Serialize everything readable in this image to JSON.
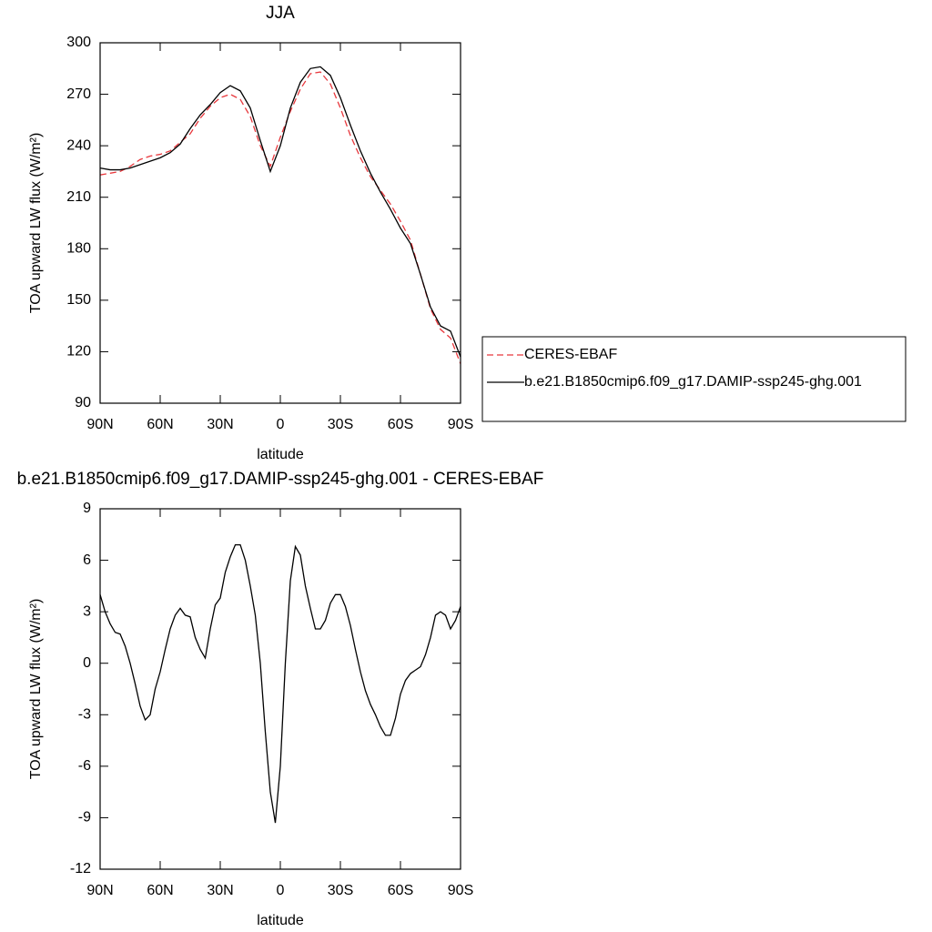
{
  "chart_data": [
    {
      "type": "line",
      "title": "JJA",
      "xlabel": "latitude",
      "ylabel": "TOA upward LW flux (W/m²)",
      "x": [
        90,
        85,
        80,
        75,
        70,
        65,
        60,
        55,
        50,
        45,
        40,
        35,
        30,
        25,
        20,
        15,
        10,
        5,
        0,
        -5,
        -10,
        -15,
        -20,
        -25,
        -30,
        -35,
        -40,
        -45,
        -50,
        -55,
        -60,
        -65,
        -70,
        -75,
        -80,
        -85,
        -90
      ],
      "series": [
        {
          "name": "CERES-EBAF",
          "color": "#e8383d",
          "style": "dashed",
          "values": [
            223,
            224,
            225,
            228,
            232,
            234,
            235,
            237,
            242,
            247,
            256,
            263,
            268,
            270,
            267,
            257,
            240,
            228,
            245,
            260,
            273,
            282,
            283,
            276,
            262,
            246,
            233,
            222,
            214,
            206,
            196,
            185,
            165,
            145,
            133,
            128,
            113
          ]
        },
        {
          "name": "b.e21.B1850cmip6.f09_g17.DAMIP-ssp245-ghg.001",
          "color": "#000000",
          "style": "solid",
          "values": [
            227,
            226,
            226,
            227,
            229,
            231,
            233,
            236,
            241,
            250,
            258,
            264,
            271,
            275,
            272,
            262,
            243,
            225,
            240,
            262,
            277,
            285,
            286,
            281,
            268,
            252,
            237,
            224,
            213,
            203,
            192,
            183,
            165,
            146,
            135,
            132,
            117
          ]
        }
      ],
      "xlim": [
        90,
        -90
      ],
      "xticks": [
        {
          "value": 90,
          "label": "90N"
        },
        {
          "value": 60,
          "label": "60N"
        },
        {
          "value": 30,
          "label": "30N"
        },
        0,
        {
          "value": -30,
          "label": "30S"
        },
        {
          "value": -60,
          "label": "60S"
        },
        {
          "value": -90,
          "label": "90S"
        }
      ],
      "ylim": [
        90,
        300
      ],
      "yticks": [
        90,
        120,
        150,
        180,
        210,
        240,
        270,
        300
      ],
      "legend": "right"
    },
    {
      "type": "line",
      "title": "b.e21.B1850cmip6.f09_g17.DAMIP-ssp245-ghg.001 - CERES-EBAF",
      "xlabel": "latitude",
      "ylabel": "TOA upward LW flux (W/m²)",
      "x": [
        90,
        87.5,
        85,
        82.5,
        80,
        77.5,
        75,
        72.5,
        70,
        67.5,
        65,
        62.5,
        60,
        57.5,
        55,
        52.5,
        50,
        47.5,
        45,
        42.5,
        40,
        37.5,
        35,
        32.5,
        30,
        27.5,
        25,
        22.5,
        20,
        17.5,
        15,
        12.5,
        10,
        7.5,
        5,
        2.5,
        0,
        -2.5,
        -5,
        -7.5,
        -10,
        -12.5,
        -15,
        -17.5,
        -20,
        -22.5,
        -25,
        -27.5,
        -30,
        -32.5,
        -35,
        -37.5,
        -40,
        -42.5,
        -45,
        -47.5,
        -50,
        -52.5,
        -55,
        -57.5,
        -60,
        -62.5,
        -65,
        -67.5,
        -70,
        -72.5,
        -75,
        -77.5,
        -80,
        -82.5,
        -85,
        -87.5,
        -90
      ],
      "series": [
        {
          "color": "#000000",
          "style": "solid",
          "values": [
            4.0,
            3.0,
            2.3,
            1.8,
            1.7,
            1.0,
            0.0,
            -1.2,
            -2.5,
            -3.3,
            -3.0,
            -1.5,
            -0.5,
            0.8,
            2.0,
            2.8,
            3.2,
            2.8,
            2.7,
            1.5,
            0.8,
            0.3,
            2.0,
            3.4,
            3.8,
            5.3,
            6.2,
            6.9,
            6.9,
            6.0,
            4.5,
            2.8,
            0.0,
            -4.0,
            -7.5,
            -9.3,
            -6.0,
            0.0,
            4.8,
            6.8,
            6.3,
            4.5,
            3.2,
            2.0,
            2.0,
            2.5,
            3.5,
            4.0,
            4.0,
            3.3,
            2.2,
            0.8,
            -0.5,
            -1.6,
            -2.4,
            -3.0,
            -3.7,
            -4.2,
            -4.2,
            -3.2,
            -1.8,
            -1.0,
            -0.6,
            -0.4,
            -0.2,
            0.5,
            1.5,
            2.8,
            3.0,
            2.8,
            2.0,
            2.5,
            3.3
          ]
        }
      ],
      "xlim": [
        90,
        -90
      ],
      "xticks": [
        {
          "value": 90,
          "label": "90N"
        },
        {
          "value": 60,
          "label": "60N"
        },
        {
          "value": 30,
          "label": "30N"
        },
        0,
        {
          "value": -30,
          "label": "30S"
        },
        {
          "value": -60,
          "label": "60S"
        },
        {
          "value": -90,
          "label": "90S"
        }
      ],
      "ylim": [
        -12,
        9
      ],
      "yticks": [
        -12,
        -9,
        -6,
        -3,
        0,
        3,
        6,
        9
      ]
    }
  ]
}
